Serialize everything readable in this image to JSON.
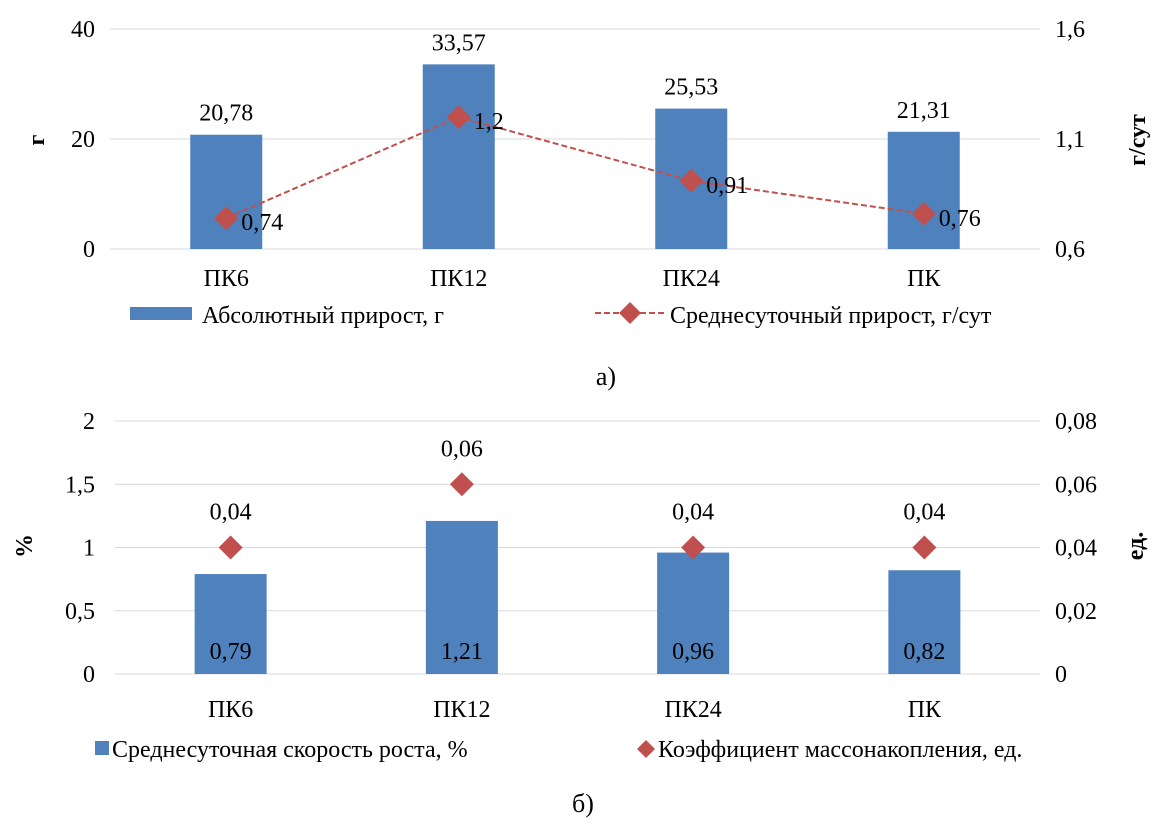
{
  "chart_data": [
    {
      "type": "bar",
      "caption": "а)",
      "categories": [
        "ПК6",
        "ПК12",
        "ПК24",
        "ПК"
      ],
      "series": [
        {
          "name": "Абсолютный прирост, г",
          "kind": "bar",
          "axis": "left",
          "values": [
            20.78,
            33.57,
            25.53,
            21.31
          ],
          "labels": [
            "20,78",
            "33,57",
            "25,53",
            "21,31"
          ],
          "color": "#4f81bd"
        },
        {
          "name": "Среднесуточный прирост, г/сут",
          "kind": "line",
          "axis": "right",
          "values": [
            0.74,
            1.2,
            0.91,
            0.76
          ],
          "labels": [
            "0,74",
            "1,2",
            "0,91",
            "0,76"
          ],
          "color": "#c0504d",
          "line_style": "dashed",
          "marker": "diamond"
        }
      ],
      "ylabel": "г",
      "y2label": "г/сут",
      "ylim": [
        0,
        40
      ],
      "y2lim": [
        0.6,
        1.6
      ],
      "yticks": [
        0,
        20,
        40
      ],
      "yticklabels": [
        "0",
        "20",
        "40"
      ],
      "y2ticks": [
        0.6,
        1.1,
        1.6
      ],
      "y2ticklabels": [
        "0,6",
        "1,1",
        "1,6"
      ],
      "grid": true,
      "legend": "bottom"
    },
    {
      "type": "bar",
      "caption": "б)",
      "categories": [
        "ПК6",
        "ПК12",
        "ПК24",
        "ПК"
      ],
      "series": [
        {
          "name": "Среднесуточная скорость роста, %",
          "kind": "bar",
          "axis": "left",
          "values": [
            0.79,
            1.21,
            0.96,
            0.82
          ],
          "labels": [
            "0,79",
            "1,21",
            "0,96",
            "0,82"
          ],
          "color": "#4f81bd"
        },
        {
          "name": "Коэффициент массонакопления, ед.",
          "kind": "scatter",
          "axis": "right",
          "values": [
            0.04,
            0.06,
            0.04,
            0.04
          ],
          "labels": [
            "0,04",
            "0,06",
            "0,04",
            "0,04"
          ],
          "color": "#c0504d",
          "marker": "diamond"
        }
      ],
      "ylabel": "%",
      "y2label": "ед.",
      "ylim": [
        0,
        2
      ],
      "y2lim": [
        0,
        0.08
      ],
      "yticks": [
        0,
        0.5,
        1,
        1.5,
        2
      ],
      "yticklabels": [
        "0",
        "0,5",
        "1",
        "1,5",
        "2"
      ],
      "y2ticks": [
        0,
        0.02,
        0.04,
        0.06,
        0.08
      ],
      "y2ticklabels": [
        "0",
        "0,02",
        "0,04",
        "0,06",
        "0,08"
      ],
      "grid": true,
      "legend": "bottom"
    }
  ]
}
